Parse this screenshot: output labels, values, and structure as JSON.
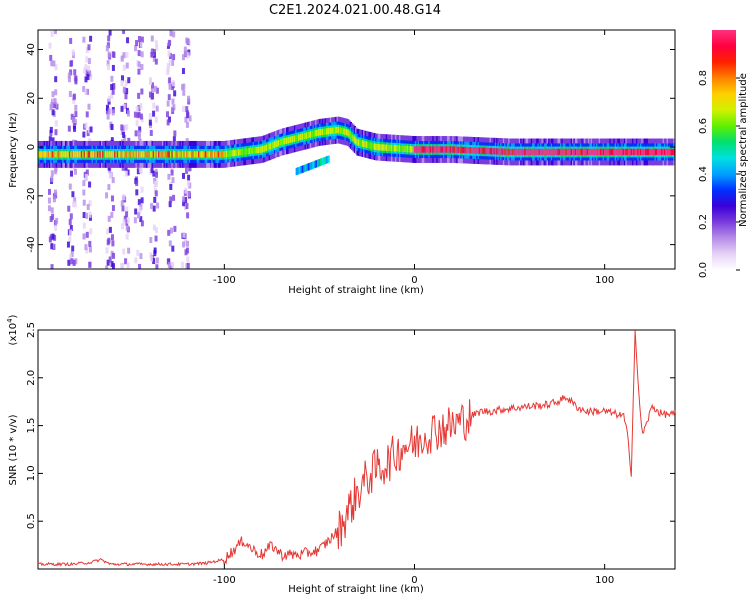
{
  "figure": {
    "title": "C2E1.2024.021.00.48.G14"
  },
  "colors": {
    "snr_line": "#e53935",
    "axis": "#000000",
    "cmap": [
      "#ffffff",
      "#e6d2f7",
      "#b58ce8",
      "#7a3cdc",
      "#3a00d8",
      "#0030ff",
      "#00a0ff",
      "#00e0e0",
      "#00e070",
      "#60f000",
      "#d0f000",
      "#ffd000",
      "#ff8000",
      "#ff2000",
      "#ff0040",
      "#ff3080"
    ]
  },
  "chart_data": [
    {
      "type": "heatmap",
      "xlabel": "Height of straight line (km)",
      "ylabel": "Frequency (Hz)",
      "xlim": [
        -198,
        137
      ],
      "ylim": [
        -50,
        48
      ],
      "xticks": [
        -100,
        0,
        100
      ],
      "yticks": [
        -40,
        -20,
        0,
        20,
        40
      ],
      "grid": false,
      "ridge": {
        "x": [
          -198,
          -180,
          -160,
          -140,
          -120,
          -100,
          -90,
          -80,
          -70,
          -60,
          -50,
          -40,
          -35,
          -30,
          -20,
          0,
          20,
          50,
          80,
          100,
          110,
          120,
          137
        ],
        "y": [
          -3,
          -3,
          -3,
          -3,
          -3,
          -3,
          -2,
          -1,
          2,
          4,
          6,
          7,
          6,
          2,
          0,
          -1,
          -1,
          -2,
          -2,
          -2,
          -2,
          -2,
          -2
        ]
      },
      "colorbar": {
        "label": "Normalized spectral amplitude",
        "range": [
          0.0,
          1.0
        ],
        "ticks": [
          "0.0",
          "0.2",
          "0.4",
          "0.6",
          "0.8"
        ]
      }
    },
    {
      "type": "line",
      "xlabel": "Height of straight line (km)",
      "ylabel": "SNR (10 * v/v)",
      "scale_label": "(x10",
      "scale_exp": "4",
      "xlim": [
        -198,
        137
      ],
      "ylim": [
        0,
        2.5
      ],
      "xticks": [
        -100,
        0,
        100
      ],
      "yticks": [
        0.5,
        1.0,
        1.5,
        2.0,
        2.5
      ],
      "grid": false,
      "series": [
        {
          "x": [
            -198,
            -180,
            -170,
            -165,
            -160,
            -140,
            -120,
            -110,
            -100,
            -95,
            -90,
            -85,
            -80,
            -75,
            -70,
            -60,
            -50,
            -45,
            -40,
            -35,
            -30,
            -25,
            -20,
            -15,
            -10,
            -5,
            0,
            5,
            10,
            20,
            30,
            35,
            40,
            50,
            60,
            70,
            75,
            80,
            85,
            90,
            100,
            110,
            112,
            114,
            116,
            118,
            120,
            125,
            130,
            137
          ],
          "y": [
            0.05,
            0.05,
            0.07,
            0.1,
            0.05,
            0.05,
            0.05,
            0.06,
            0.1,
            0.2,
            0.3,
            0.2,
            0.15,
            0.25,
            0.15,
            0.15,
            0.2,
            0.3,
            0.4,
            0.6,
            0.8,
            0.95,
            1.05,
            1.1,
            1.2,
            1.3,
            1.3,
            1.4,
            1.45,
            1.5,
            1.6,
            1.65,
            1.65,
            1.68,
            1.7,
            1.72,
            1.75,
            1.8,
            1.7,
            1.65,
            1.65,
            1.6,
            1.4,
            1.0,
            2.5,
            1.8,
            1.4,
            1.7,
            1.62,
            1.62
          ]
        }
      ]
    }
  ]
}
